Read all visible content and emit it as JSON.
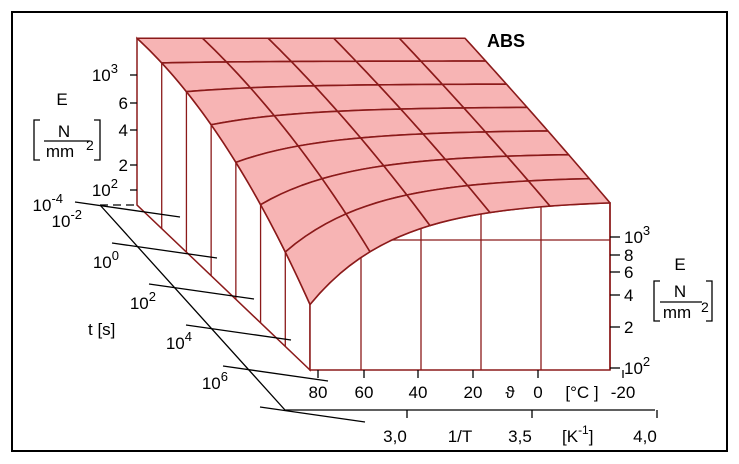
{
  "title": "ABS",
  "left_axis": {
    "symbol": "E",
    "unit_numerator": "N",
    "unit_denominator": "mm",
    "unit_exponent": "2",
    "ticks": [
      {
        "mantissa": "10",
        "exponent": "3"
      },
      {
        "mantissa": "6"
      },
      {
        "mantissa": "4"
      },
      {
        "mantissa": "2"
      },
      {
        "mantissa": "10",
        "exponent": "2"
      }
    ]
  },
  "right_axis": {
    "symbol": "E",
    "unit_numerator": "N",
    "unit_denominator": "mm",
    "unit_exponent": "2",
    "ticks": [
      {
        "mantissa": "10",
        "exponent": "3"
      },
      {
        "mantissa": "8"
      },
      {
        "mantissa": "6"
      },
      {
        "mantissa": "4"
      },
      {
        "mantissa": "2"
      },
      {
        "mantissa": "10",
        "exponent": "2"
      }
    ]
  },
  "time_axis": {
    "label": "t [s]",
    "ticks": [
      {
        "mantissa": "10",
        "exponent": "-4"
      },
      {
        "mantissa": "10",
        "exponent": "-2"
      },
      {
        "mantissa": "10",
        "exponent": "0"
      },
      {
        "mantissa": "10",
        "exponent": "2"
      },
      {
        "mantissa": "10",
        "exponent": "4"
      },
      {
        "mantissa": "10",
        "exponent": "6"
      }
    ]
  },
  "temperature_axis": {
    "symbol": "ϑ",
    "unit": "[°C ]",
    "ticks": [
      "80",
      "60",
      "40",
      "20",
      "0",
      "-20"
    ]
  },
  "inverse_temperature_axis": {
    "label": "1/T",
    "unit_open": "[K",
    "unit_exponent": "-1",
    "unit_close": "]",
    "ticks": [
      "3,0",
      "3,5",
      "4,0"
    ]
  }
}
